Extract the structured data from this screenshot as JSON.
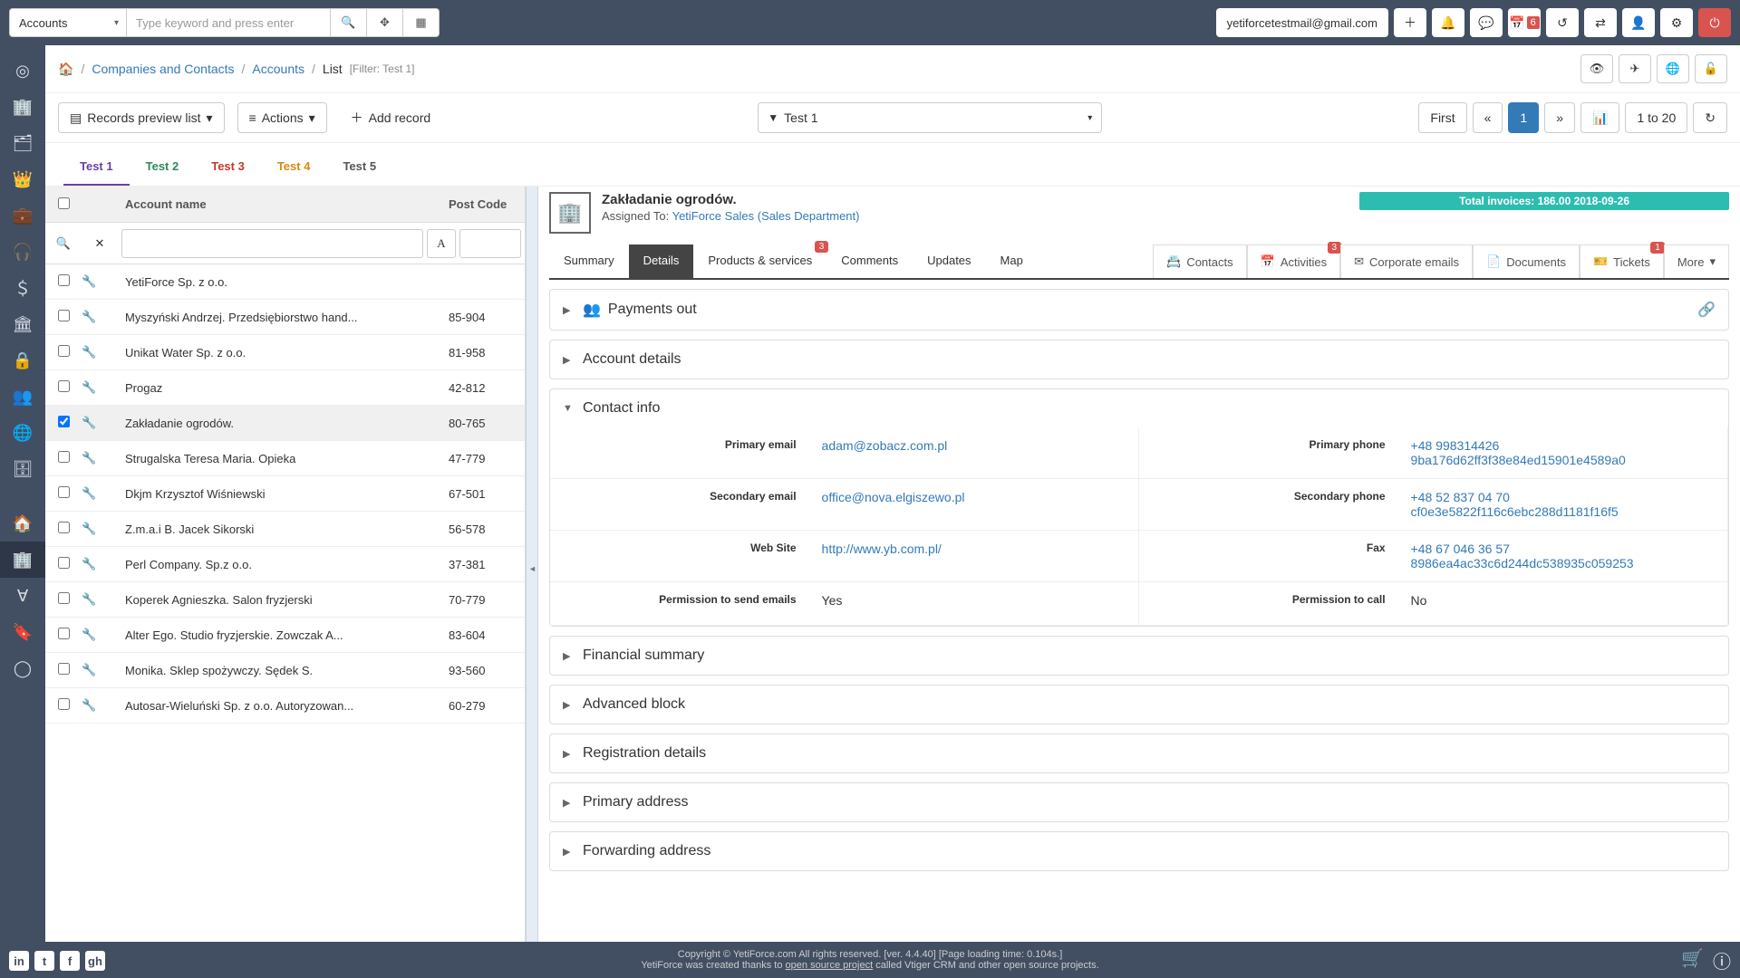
{
  "topbar": {
    "module": "Accounts",
    "search_placeholder": "Type keyword and press enter",
    "email": "yetiforcetestmail@gmail.com",
    "cal_count": "6"
  },
  "breadcrumb": {
    "root": "Companies and Contacts",
    "module": "Accounts",
    "page": "List",
    "filter": "[Filter: Test 1]"
  },
  "toolbar": {
    "records_preview": "Records preview list",
    "actions": "Actions",
    "add_record": "Add record",
    "filter_name": "Test 1",
    "first": "First",
    "page": "1",
    "range": "1 to 20"
  },
  "test_tabs": [
    "Test 1",
    "Test 2",
    "Test 3",
    "Test 4",
    "Test 5"
  ],
  "list": {
    "header_name": "Account name",
    "header_post": "Post Code",
    "rows": [
      {
        "name": "YetiForce Sp. z o.o.",
        "post": "",
        "sel": false
      },
      {
        "name": "Myszyński Andrzej. Przedsiębiorstwo hand...",
        "post": "85-904",
        "sel": false
      },
      {
        "name": "Unikat Water Sp. z o.o.",
        "post": "81-958",
        "sel": false
      },
      {
        "name": "Progaz",
        "post": "42-812",
        "sel": false
      },
      {
        "name": "Zakładanie ogrodów.",
        "post": "80-765",
        "sel": true
      },
      {
        "name": "Strugalska Teresa Maria. Opieka",
        "post": "47-779",
        "sel": false
      },
      {
        "name": "Dkjm Krzysztof Wiśniewski",
        "post": "67-501",
        "sel": false
      },
      {
        "name": "Z.m.a.i B. Jacek Sikorski",
        "post": "56-578",
        "sel": false
      },
      {
        "name": "Perl Company. Sp.z o.o.",
        "post": "37-381",
        "sel": false
      },
      {
        "name": "Koperek Agnieszka. Salon fryzjerski",
        "post": "70-779",
        "sel": false
      },
      {
        "name": "Alter Ego. Studio fryzjerskie. Zowczak A...",
        "post": "83-604",
        "sel": false
      },
      {
        "name": "Monika. Sklep spożywczy. Sędek S.",
        "post": "93-560",
        "sel": false
      },
      {
        "name": "Autosar-Wieluński Sp. z o.o. Autoryzowan...",
        "post": "60-279",
        "sel": false
      }
    ]
  },
  "detail": {
    "title": "Zakładanie ogrodów.",
    "assigned_label": "Assigned To:",
    "assigned_value": "YetiForce Sales (Sales Department)",
    "invoice_badge": "Total invoices: 186.00 2018-09-26",
    "tabs": {
      "summary": "Summary",
      "details": "Details",
      "products": "Products & services",
      "products_badge": "3",
      "comments": "Comments",
      "updates": "Updates",
      "map": "Map",
      "contacts": "Contacts",
      "activities": "Activities",
      "activities_badge": "3",
      "corp_emails": "Corporate emails",
      "documents": "Documents",
      "tickets": "Tickets",
      "tickets_badge": "1",
      "more": "More"
    },
    "blocks": {
      "payments_out": "Payments out",
      "account_details": "Account details",
      "contact_info": "Contact info",
      "financial_summary": "Financial summary",
      "advanced_block": "Advanced block",
      "registration_details": "Registration details",
      "primary_address": "Primary address",
      "forwarding_address": "Forwarding address"
    },
    "contact": {
      "primary_email_lbl": "Primary email",
      "primary_email": "adam@zobacz.com.pl",
      "primary_phone_lbl": "Primary phone",
      "primary_phone": "+48 998314426",
      "primary_phone2": "9ba176d62ff3f38e84ed15901e4589a0",
      "secondary_email_lbl": "Secondary email",
      "secondary_email": "office@nova.elgiszewo.pl",
      "secondary_phone_lbl": "Secondary phone",
      "secondary_phone": "+48 52 837 04 70",
      "secondary_phone2": "cf0e3e5822f116c6ebc288d1181f16f5",
      "website_lbl": "Web Site",
      "website": "http://www.yb.com.pl/",
      "fax_lbl": "Fax",
      "fax": "+48 67 046 36 57",
      "fax2": "8986ea4ac33c6d244dc538935c059253",
      "perm_email_lbl": "Permission to send emails",
      "perm_email": "Yes",
      "perm_call_lbl": "Permission to call",
      "perm_call": "No"
    }
  },
  "footer": {
    "line1": "Copyright © YetiForce.com All rights reserved. [ver. 4.4.40] [Page loading time: 0.104s.]",
    "line2a": "YetiForce was created thanks to ",
    "line2_link": "open source project",
    "line2b": " called Vtiger CRM and other open source projects."
  }
}
